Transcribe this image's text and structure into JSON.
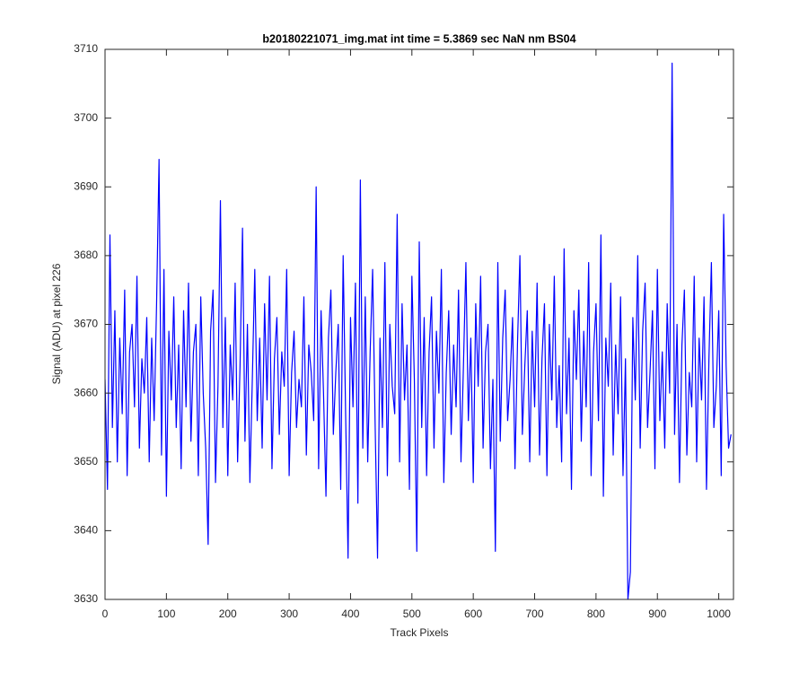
{
  "chart_data": {
    "type": "line",
    "title": "b20180221071_img.mat int time = 5.3869 sec  NaN nm BS04",
    "xlabel": "Track Pixels",
    "ylabel": "Signal (ADU) at pixel 226",
    "xlim": [
      0,
      1024
    ],
    "xticks": [
      0,
      100,
      200,
      300,
      400,
      500,
      600,
      700,
      800,
      900,
      1000
    ],
    "ylim": [
      3630,
      3710
    ],
    "yticks": [
      3630,
      3640,
      3650,
      3660,
      3670,
      3680,
      3690,
      3700,
      3710
    ],
    "grid": false,
    "series": [
      {
        "color": "#0000ff",
        "x": [
          0,
          4,
          8,
          12,
          16,
          20,
          24,
          28,
          32,
          36,
          40,
          44,
          48,
          52,
          56,
          60,
          64,
          68,
          72,
          76,
          80,
          84,
          88,
          92,
          96,
          100,
          104,
          108,
          112,
          116,
          120,
          124,
          128,
          132,
          136,
          140,
          144,
          148,
          152,
          156,
          160,
          164,
          168,
          172,
          176,
          180,
          184,
          188,
          192,
          196,
          200,
          204,
          208,
          212,
          216,
          220,
          224,
          228,
          232,
          236,
          240,
          244,
          248,
          252,
          256,
          260,
          264,
          268,
          272,
          276,
          280,
          284,
          288,
          292,
          296,
          300,
          304,
          308,
          312,
          316,
          320,
          324,
          328,
          332,
          336,
          340,
          344,
          348,
          352,
          356,
          360,
          364,
          368,
          372,
          376,
          380,
          384,
          388,
          392,
          396,
          400,
          404,
          408,
          412,
          416,
          420,
          424,
          428,
          432,
          436,
          440,
          444,
          448,
          452,
          456,
          460,
          464,
          468,
          472,
          476,
          480,
          484,
          488,
          492,
          496,
          500,
          504,
          508,
          512,
          516,
          520,
          524,
          528,
          532,
          536,
          540,
          544,
          548,
          552,
          556,
          560,
          564,
          568,
          572,
          576,
          580,
          584,
          588,
          592,
          596,
          600,
          604,
          608,
          612,
          616,
          620,
          624,
          628,
          632,
          636,
          640,
          644,
          648,
          652,
          656,
          660,
          664,
          668,
          672,
          676,
          680,
          684,
          688,
          692,
          696,
          700,
          704,
          708,
          712,
          716,
          720,
          724,
          728,
          732,
          736,
          740,
          744,
          748,
          752,
          756,
          760,
          764,
          768,
          772,
          776,
          780,
          784,
          788,
          792,
          796,
          800,
          804,
          808,
          812,
          816,
          820,
          824,
          828,
          832,
          836,
          840,
          844,
          848,
          852,
          856,
          860,
          864,
          868,
          872,
          876,
          880,
          884,
          888,
          892,
          896,
          900,
          904,
          908,
          912,
          916,
          920,
          924,
          928,
          932,
          936,
          940,
          944,
          948,
          952,
          956,
          960,
          964,
          968,
          972,
          976,
          980,
          984,
          988,
          992,
          996,
          1000,
          1004,
          1008,
          1012,
          1016,
          1020
        ],
        "values": [
          3662,
          3646,
          3683,
          3655,
          3672,
          3650,
          3668,
          3657,
          3675,
          3648,
          3666,
          3670,
          3658,
          3677,
          3652,
          3665,
          3660,
          3671,
          3650,
          3668,
          3656,
          3673,
          3694,
          3651,
          3678,
          3645,
          3669,
          3659,
          3674,
          3655,
          3667,
          3649,
          3672,
          3658,
          3676,
          3653,
          3666,
          3670,
          3648,
          3674,
          3660,
          3652,
          3638,
          3669,
          3675,
          3647,
          3661,
          3688,
          3655,
          3671,
          3648,
          3667,
          3659,
          3676,
          3650,
          3664,
          3684,
          3653,
          3670,
          3647,
          3662,
          3678,
          3656,
          3668,
          3652,
          3673,
          3659,
          3677,
          3649,
          3665,
          3671,
          3654,
          3666,
          3661,
          3678,
          3648,
          3663,
          3669,
          3655,
          3662,
          3658,
          3674,
          3651,
          3667,
          3663,
          3656,
          3690,
          3649,
          3672,
          3660,
          3645,
          3668,
          3675,
          3654,
          3663,
          3670,
          3646,
          3680,
          3657,
          3636,
          3671,
          3658,
          3676,
          3644,
          3691,
          3652,
          3674,
          3650,
          3666,
          3678,
          3656,
          3636,
          3668,
          3655,
          3679,
          3648,
          3670,
          3661,
          3657,
          3686,
          3650,
          3673,
          3659,
          3667,
          3646,
          3677,
          3662,
          3637,
          3682,
          3655,
          3671,
          3648,
          3666,
          3674,
          3652,
          3669,
          3660,
          3678,
          3647,
          3663,
          3672,
          3654,
          3667,
          3658,
          3675,
          3650,
          3664,
          3679,
          3656,
          3668,
          3647,
          3673,
          3661,
          3677,
          3652,
          3666,
          3670,
          3649,
          3662,
          3637,
          3679,
          3653,
          3668,
          3675,
          3656,
          3662,
          3671,
          3649,
          3667,
          3680,
          3654,
          3664,
          3672,
          3650,
          3669,
          3658,
          3676,
          3651,
          3665,
          3673,
          3648,
          3670,
          3659,
          3677,
          3655,
          3664,
          3650,
          3681,
          3657,
          3668,
          3646,
          3672,
          3662,
          3675,
          3653,
          3669,
          3658,
          3679,
          3648,
          3666,
          3673,
          3656,
          3683,
          3645,
          3668,
          3661,
          3676,
          3651,
          3667,
          3657,
          3674,
          3648,
          3665,
          3630,
          3634,
          3671,
          3659,
          3680,
          3652,
          3669,
          3676,
          3655,
          3663,
          3672,
          3649,
          3678,
          3656,
          3666,
          3652,
          3673,
          3660,
          3708,
          3654,
          3670,
          3647,
          3667,
          3675,
          3651,
          3663,
          3658,
          3677,
          3650,
          3668,
          3659,
          3674,
          3646,
          3665,
          3679,
          3655,
          3661,
          3672,
          3648,
          3686,
          3664,
          3652,
          3654
        ]
      }
    ]
  }
}
